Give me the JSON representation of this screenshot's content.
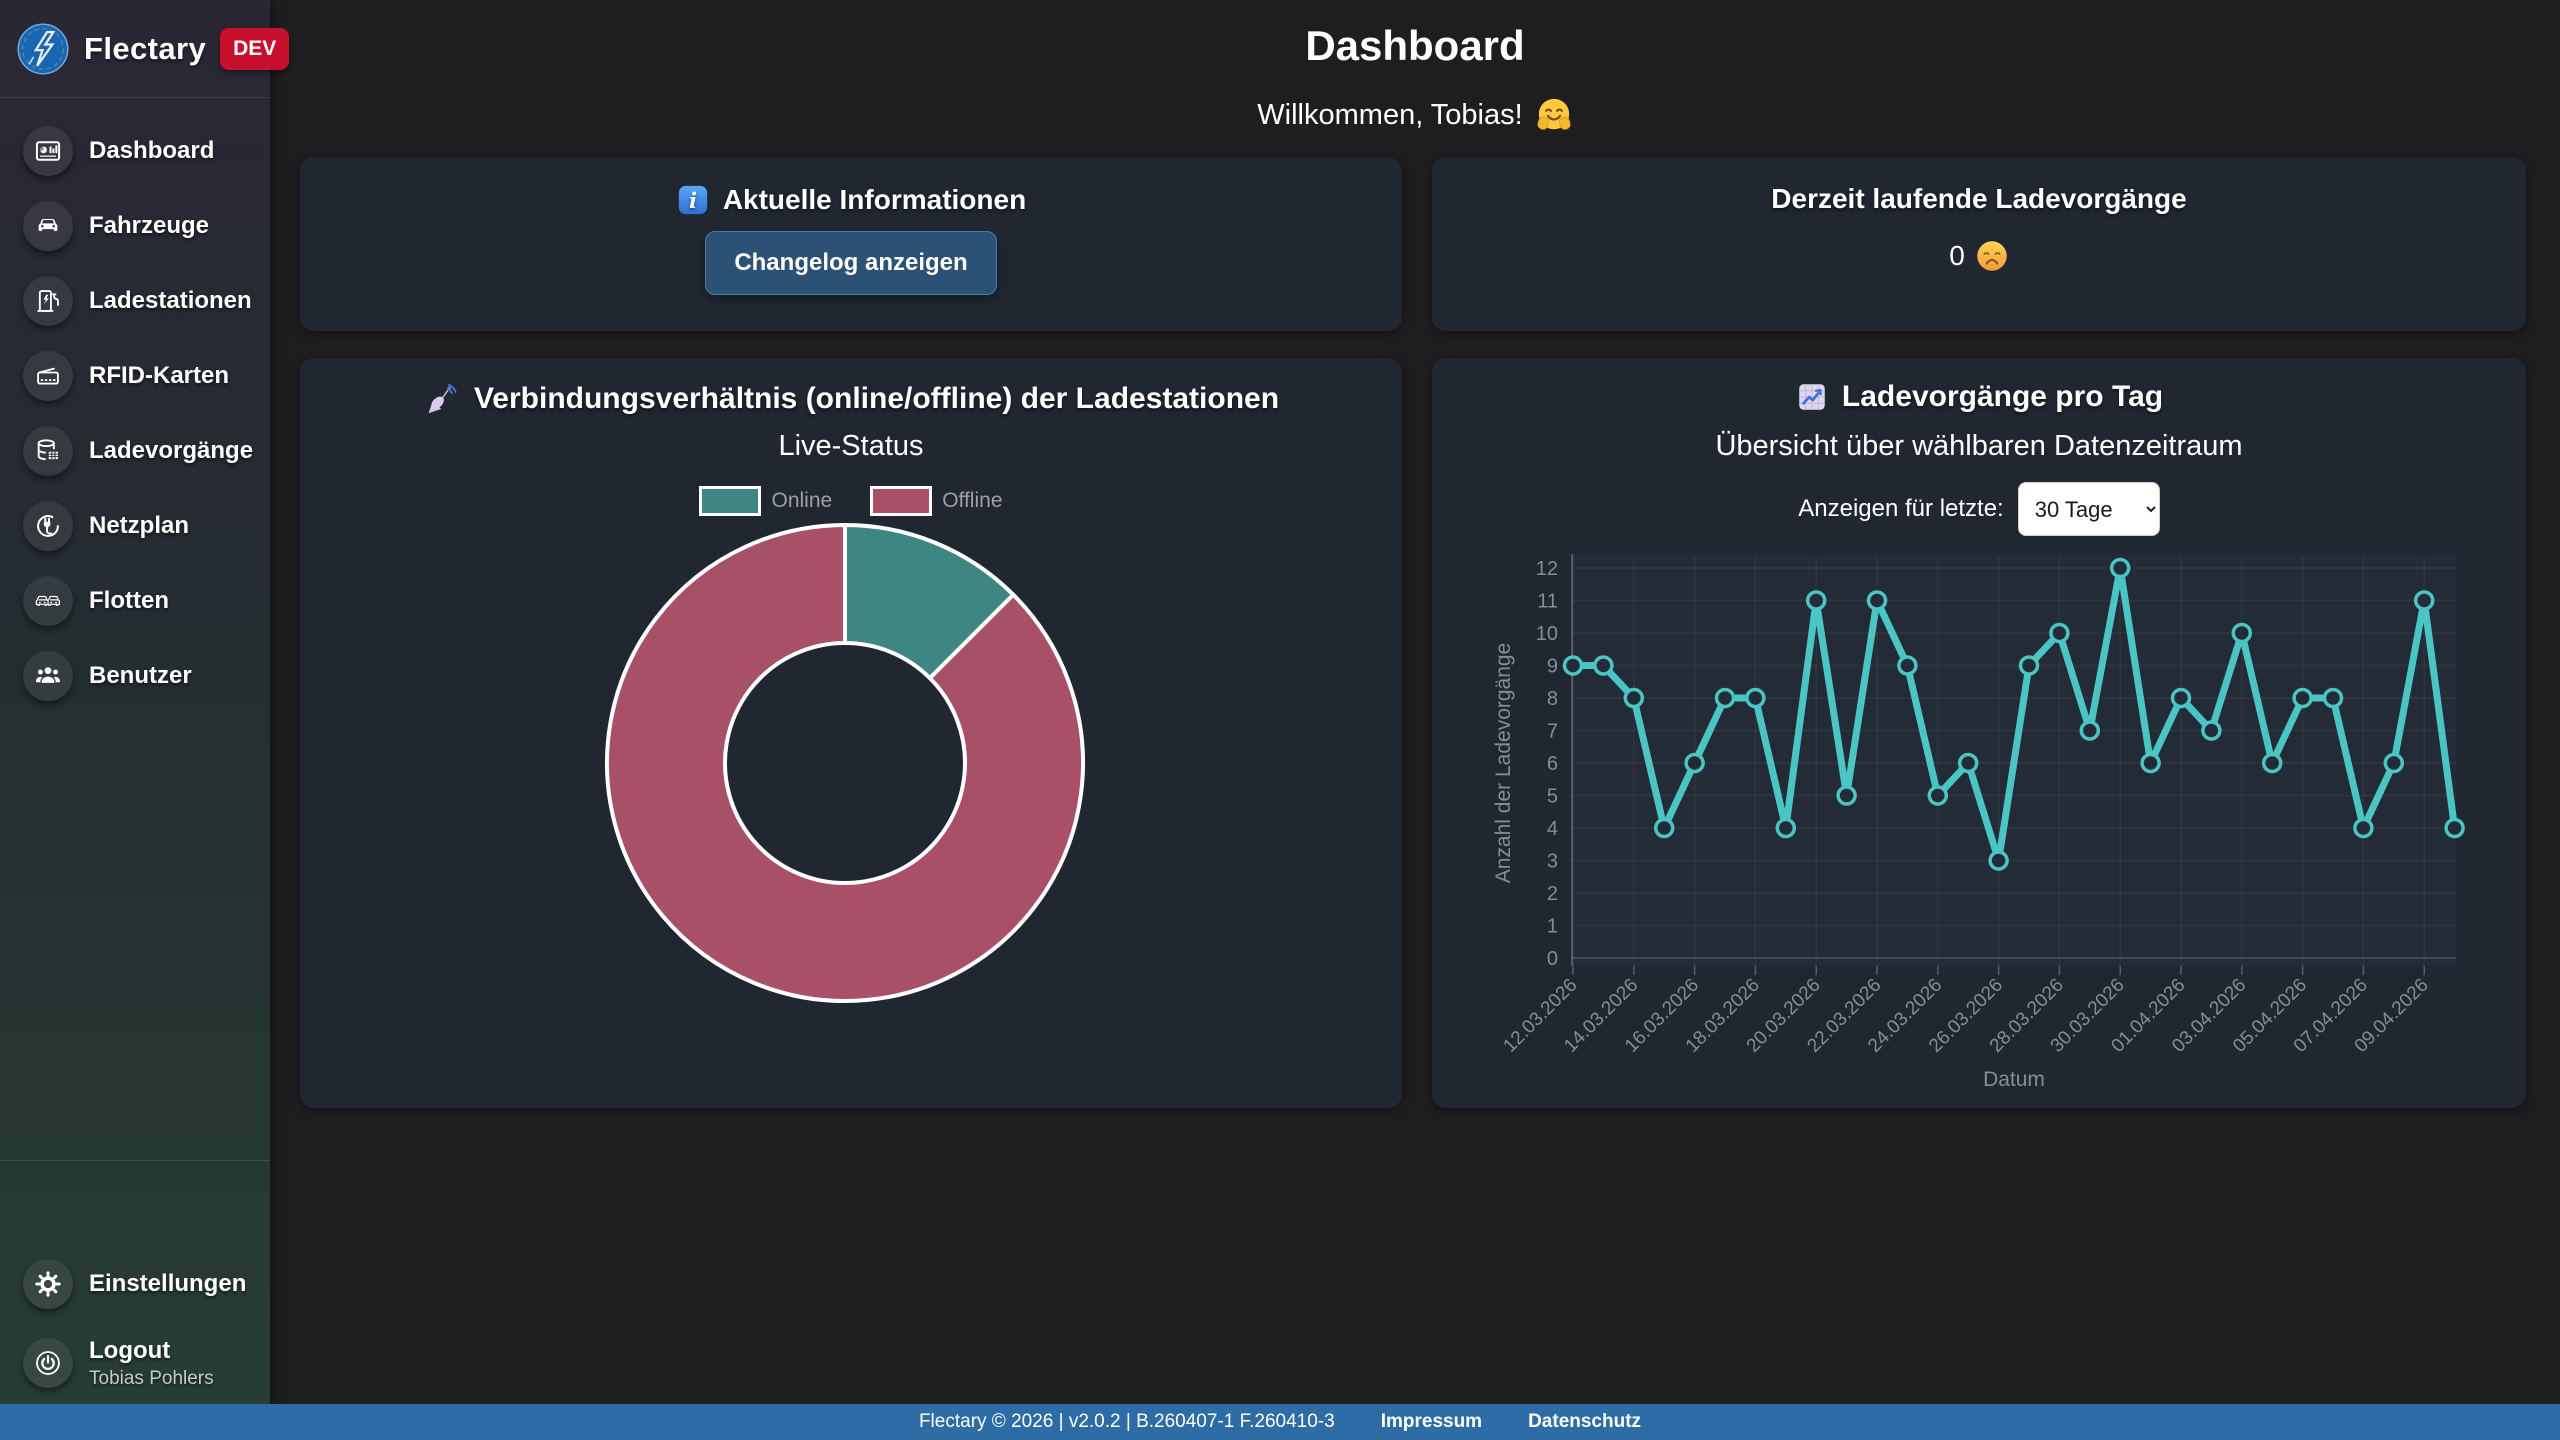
{
  "app": {
    "name": "Flectary",
    "badge": "DEV"
  },
  "sidebar": {
    "items": [
      {
        "label": "Dashboard",
        "icon": "dashboard-icon"
      },
      {
        "label": "Fahrzeuge",
        "icon": "car-icon"
      },
      {
        "label": "Ladestationen",
        "icon": "charging-station-icon"
      },
      {
        "label": "RFID-Karten",
        "icon": "rfid-card-icon"
      },
      {
        "label": "Ladevorgänge",
        "icon": "database-icon"
      },
      {
        "label": "Netzplan",
        "icon": "plug-icon"
      },
      {
        "label": "Flotten",
        "icon": "fleet-icon"
      },
      {
        "label": "Benutzer",
        "icon": "users-icon"
      }
    ],
    "settings": {
      "label": "Einstellungen",
      "icon": "gear-icon"
    },
    "logout": {
      "label": "Logout",
      "sublabel": "Tobias Pohlers",
      "icon": "power-icon"
    }
  },
  "header": {
    "title": "Dashboard",
    "welcome": "Willkommen, Tobias!",
    "welcome_emoji": "🤗"
  },
  "cards": {
    "info": {
      "title": "Aktuelle Informationen",
      "title_emoji": "ℹ️",
      "button_label": "Changelog anzeigen"
    },
    "active": {
      "title": "Derzeit laufende Ladevorgänge",
      "value": "0",
      "value_emoji": "😞"
    },
    "donut": {
      "title_emoji": "📡"
    },
    "line": {
      "title_emoji": "📈",
      "filter_label": "Anzeigen für letzte:",
      "filter_value": "30 Tage"
    }
  },
  "chart_data": [
    {
      "type": "pie",
      "variant": "donut",
      "title": "Verbindungsverhältnis (online/offline) der Ladestationen",
      "subtitle": "Live-Status",
      "labels": [
        "Online",
        "Offline"
      ],
      "values_percent": [
        12.5,
        87.5
      ],
      "colors": [
        "#3e8682",
        "#a85068"
      ],
      "legend_position": "top"
    },
    {
      "type": "line",
      "title": "Ladevorgänge pro Tag",
      "subtitle": "Übersicht über wählbaren Datenzeitraum",
      "xlabel": "Datum",
      "ylabel": "Anzahl der Ladevorgänge",
      "ylim": [
        0,
        12
      ],
      "grid": true,
      "x_tick_every": 2,
      "color": "#4ac5c3",
      "x": [
        "12.03.2026",
        "13.03.2026",
        "14.03.2026",
        "15.03.2026",
        "16.03.2026",
        "17.03.2026",
        "18.03.2026",
        "19.03.2026",
        "20.03.2026",
        "21.03.2026",
        "22.03.2026",
        "23.03.2026",
        "24.03.2026",
        "25.03.2026",
        "26.03.2026",
        "27.03.2026",
        "28.03.2026",
        "29.03.2026",
        "30.03.2026",
        "31.03.2026",
        "01.04.2026",
        "02.04.2026",
        "03.04.2026",
        "04.04.2026",
        "05.04.2026",
        "06.04.2026",
        "07.04.2026",
        "08.04.2026",
        "09.04.2026",
        "10.04.2026"
      ],
      "values": [
        9,
        9,
        8,
        4,
        6,
        8,
        8,
        4,
        11,
        5,
        11,
        9,
        5,
        6,
        3,
        9,
        10,
        7,
        12,
        6,
        8,
        7,
        10,
        6,
        8,
        8,
        4,
        6,
        11,
        4
      ]
    }
  ],
  "footer": {
    "copyright": "Flectary © 2026 | v2.0.2 | B.260407-1 F.260410-3",
    "links": [
      {
        "label": "Impressum"
      },
      {
        "label": "Datenschutz"
      }
    ]
  }
}
